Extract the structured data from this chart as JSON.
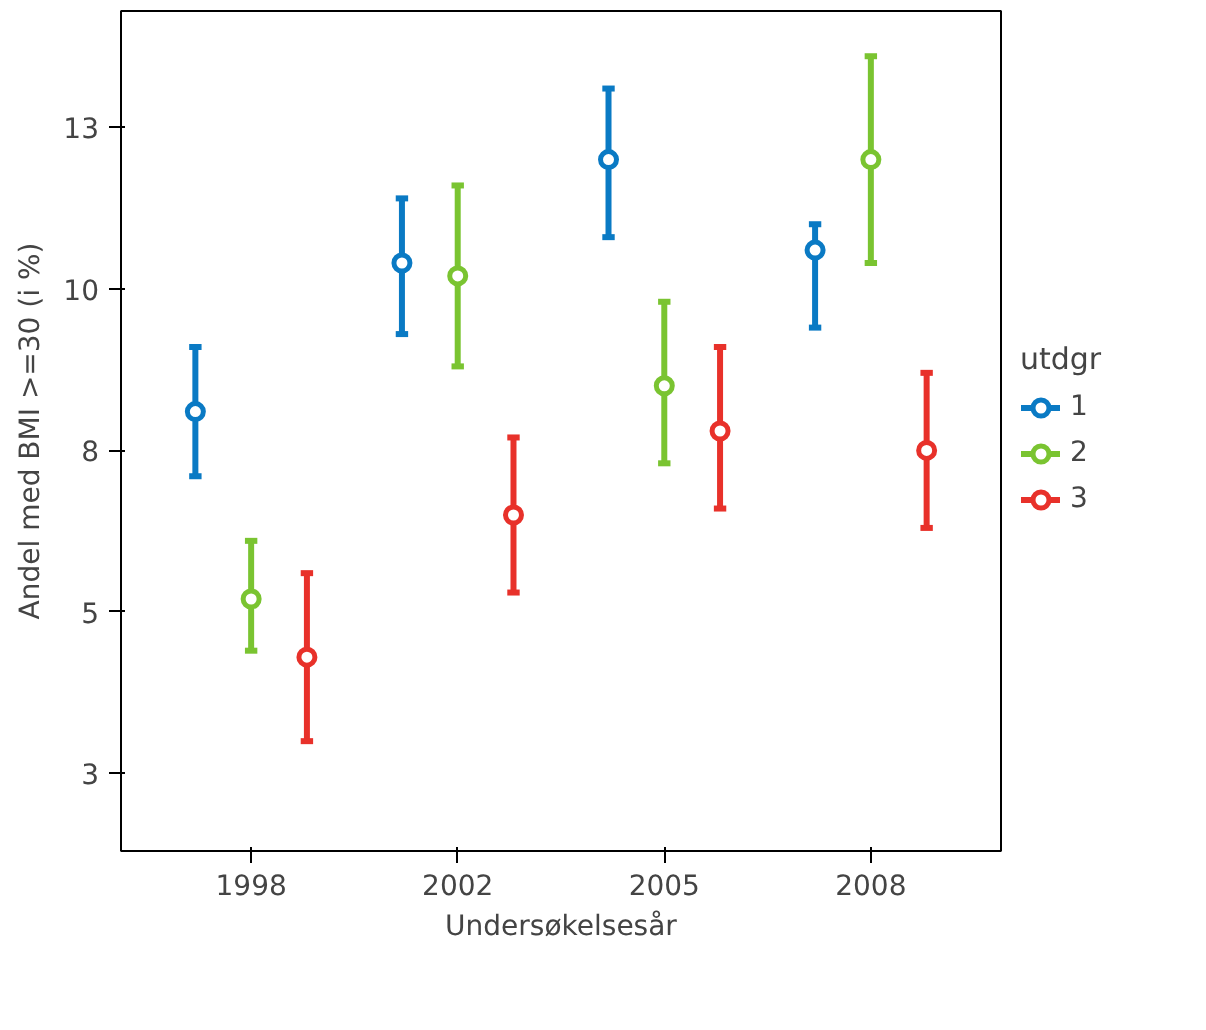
{
  "chart_data": {
    "type": "scatter",
    "xlabel": "Undersøkelsesår",
    "ylabel": "Andel med BMI >=30 (i %)",
    "legend_title": "utdgr",
    "categories": [
      "1998",
      "2002",
      "2005",
      "2008"
    ],
    "ylim": [
      1.3,
      14.3
    ],
    "yticks": [
      {
        "value": 2.5,
        "label": "3"
      },
      {
        "value": 5,
        "label": "5"
      },
      {
        "value": 7.5,
        "label": "8"
      },
      {
        "value": 10,
        "label": "10"
      },
      {
        "value": 12.5,
        "label": "13"
      }
    ],
    "series": [
      {
        "name": "1",
        "color": "#0a7ac4",
        "values": [
          8.1,
          10.4,
          12.0,
          10.6
        ],
        "errors": [
          [
            7.1,
            9.1
          ],
          [
            9.3,
            11.4
          ],
          [
            10.8,
            13.1
          ],
          [
            9.4,
            11.0
          ]
        ]
      },
      {
        "name": "2",
        "color": "#7ac431",
        "values": [
          5.2,
          10.2,
          8.5,
          12.0
        ],
        "errors": [
          [
            4.4,
            6.1
          ],
          [
            8.8,
            11.6
          ],
          [
            7.3,
            9.8
          ],
          [
            10.4,
            13.6
          ]
        ]
      },
      {
        "name": "3",
        "color": "#e8312a",
        "values": [
          4.3,
          6.5,
          7.8,
          7.5
        ],
        "errors": [
          [
            3.0,
            5.6
          ],
          [
            5.3,
            7.7
          ],
          [
            6.6,
            9.1
          ],
          [
            6.3,
            8.7
          ]
        ]
      }
    ],
    "marker": "circle",
    "grid": false,
    "legend": "right"
  }
}
